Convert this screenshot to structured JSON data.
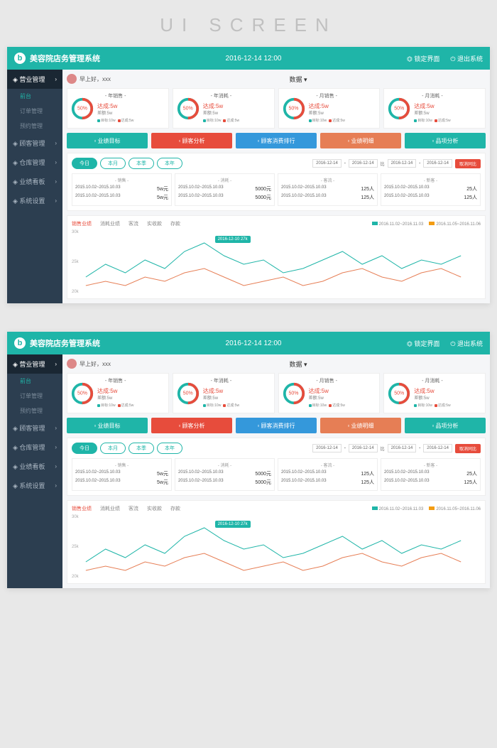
{
  "page_title": "UI SCREEN",
  "header": {
    "system_name": "美容院店务管理系统",
    "datetime": "2016-12-14  12:00",
    "lock": "锁定界面",
    "logout": "退出系统"
  },
  "sidebar": {
    "items": [
      {
        "label": "营业管理",
        "active": true,
        "subs": [
          {
            "label": "前台",
            "active": true
          },
          {
            "label": "订单管理"
          },
          {
            "label": "预约管理"
          }
        ]
      },
      {
        "label": "顾客管理"
      },
      {
        "label": "仓库管理"
      },
      {
        "label": "业绩看板"
      },
      {
        "label": "系统设置"
      }
    ]
  },
  "greeting": "早上好，xxx",
  "data_tab": "数据",
  "kpis": [
    {
      "title": "- 年销售 -",
      "pct": "50%",
      "reach": "达成:5w",
      "diff": "差额:5w",
      "target": "目标:10w",
      "done": "达成:5w"
    },
    {
      "title": "- 年消耗 -",
      "pct": "50%",
      "reach": "达成:5w",
      "diff": "差额:5w",
      "target": "目标:10w",
      "done": "达成:5w"
    },
    {
      "title": "- 月销售 -",
      "pct": "50%",
      "reach": "达成:5w",
      "diff": "差额:5w",
      "target": "目标:10w",
      "done": "达成:5w"
    },
    {
      "title": "- 月消耗 -",
      "pct": "50%",
      "reach": "达成:5w",
      "diff": "差额:5w",
      "target": "目标:10w",
      "done": "达成:5w"
    }
  ],
  "kpi_colors": {
    "target": "#1fb5a8",
    "done": "#e74c3c"
  },
  "buttons": [
    {
      "label": "业绩目标",
      "color": "#1fb5a8",
      "icon": "chart"
    },
    {
      "label": "顾客分析",
      "color": "#e74c3c",
      "icon": "user"
    },
    {
      "label": "顾客消费排行",
      "color": "#3498db",
      "icon": "info"
    },
    {
      "label": "业绩明细",
      "color": "#e67e55",
      "icon": "bar"
    },
    {
      "label": "品项分析",
      "color": "#1fb5a8",
      "icon": "search"
    }
  ],
  "periods": [
    "今日",
    "本月",
    "本季",
    "本年"
  ],
  "date_range": {
    "d1": "2016-12-14",
    "d2": "2016-12-14",
    "d3": "2016-12-14",
    "d4": "2016-12-14",
    "compare": "比",
    "cancel": "取消同比"
  },
  "stats": [
    {
      "title": "- 销售 -",
      "r1": "2015.10.02~2015.10.03",
      "v1": "5w元",
      "r2": "2015.10.02~2015.10.03",
      "v2": "5w元"
    },
    {
      "title": "- 消耗 -",
      "r1": "2015.10.02~2015.10.03",
      "v1": "5000元",
      "r2": "2015.10.02~2015.10.03",
      "v2": "5000元"
    },
    {
      "title": "- 客流 -",
      "r1": "2015.10.02~2015.10.03",
      "v1": "125人",
      "r2": "2015.10.02~2015.10.03",
      "v2": "125人"
    },
    {
      "title": "- 新客 -",
      "r1": "2015.10.02~2015.10.03",
      "v1": "25人",
      "r2": "2015.10.02~2015.10.03",
      "v2": "125人"
    }
  ],
  "chart": {
    "tabs": [
      "销售业绩",
      "消耗业绩",
      "客流",
      "实收款",
      "存款"
    ],
    "legend1": "2016.11.02~2016.11.03",
    "legend2": "2016.11.05~2016.11.06",
    "legend1_color": "#1fb5a8",
    "legend2_color": "#f39c12",
    "y_labels": [
      "30k",
      "25k",
      "20k"
    ],
    "tooltip": "2016-12-10\n27k",
    "series1": [
      22,
      25,
      23,
      26,
      24,
      28,
      30,
      27,
      25,
      26,
      23,
      24,
      26,
      28,
      25,
      27,
      24,
      26,
      25,
      27
    ],
    "series2": [
      20,
      21,
      20,
      22,
      21,
      23,
      24,
      22,
      20,
      21,
      22,
      20,
      21,
      23,
      24,
      22,
      21,
      23,
      24,
      22
    ],
    "color1": "#1fb5a8",
    "color2": "#e67e55"
  }
}
